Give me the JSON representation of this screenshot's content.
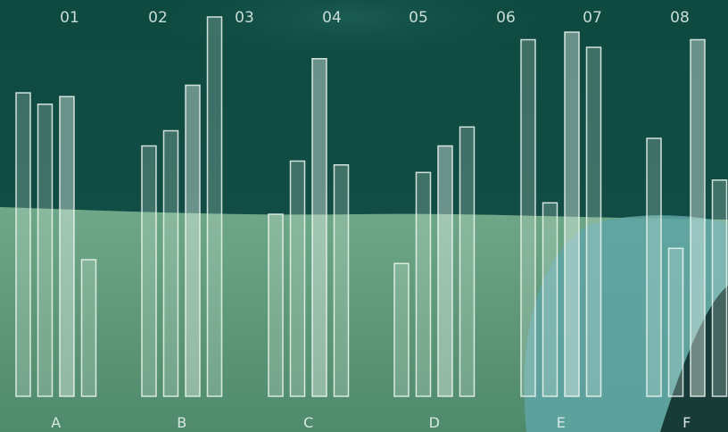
{
  "chart_data": {
    "type": "bar",
    "top_labels": [
      "01",
      "02",
      "03",
      "04",
      "05",
      "06",
      "07",
      "08"
    ],
    "groups": [
      {
        "label": "A",
        "values": [
          80,
          77,
          79,
          36
        ]
      },
      {
        "label": "B",
        "values": [
          66,
          70,
          82,
          100
        ]
      },
      {
        "label": "C",
        "values": [
          48,
          62,
          89,
          61
        ]
      },
      {
        "label": "D",
        "values": [
          35,
          59,
          66,
          71
        ]
      },
      {
        "label": "E",
        "values": [
          94,
          51,
          96,
          92
        ]
      },
      {
        "label": "F",
        "values": [
          68,
          39,
          94,
          57
        ]
      }
    ],
    "ylim": [
      0,
      100
    ],
    "grid": false,
    "colors": {
      "bar_fill": "#e9f4ee",
      "bar_stroke": "#eef8f2",
      "background_top": "#0f4a40",
      "background_bottom": "#5e9a7c"
    }
  }
}
